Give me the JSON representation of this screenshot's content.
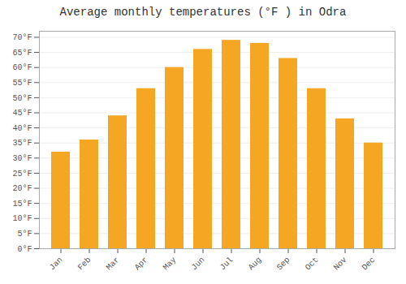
{
  "chart_data": {
    "type": "bar",
    "title": "Average monthly temperatures (°F ) in Odra",
    "categories": [
      "Jan",
      "Feb",
      "Mar",
      "Apr",
      "May",
      "Jun",
      "Jul",
      "Aug",
      "Sep",
      "Oct",
      "Nov",
      "Dec"
    ],
    "values": [
      32,
      36,
      44,
      53,
      60,
      66,
      69,
      68,
      63,
      53,
      43,
      35
    ],
    "color": "#F5A623",
    "ylim": [
      0,
      72
    ],
    "yticks": [
      {
        "value": 0,
        "label": "0°F"
      },
      {
        "value": 5,
        "label": "5°F"
      },
      {
        "value": 10,
        "label": "10°F"
      },
      {
        "value": 15,
        "label": "15°F"
      },
      {
        "value": 20,
        "label": "20°F"
      },
      {
        "value": 25,
        "label": "25°F"
      },
      {
        "value": 30,
        "label": "30°F"
      },
      {
        "value": 35,
        "label": "35°F"
      },
      {
        "value": 40,
        "label": "40°F"
      },
      {
        "value": 45,
        "label": "45°F"
      },
      {
        "value": 50,
        "label": "50°F"
      },
      {
        "value": 55,
        "label": "55°F"
      },
      {
        "value": 60,
        "label": "60°F"
      },
      {
        "value": 65,
        "label": "65°F"
      },
      {
        "value": 70,
        "label": "70°F"
      }
    ],
    "grid": true
  }
}
